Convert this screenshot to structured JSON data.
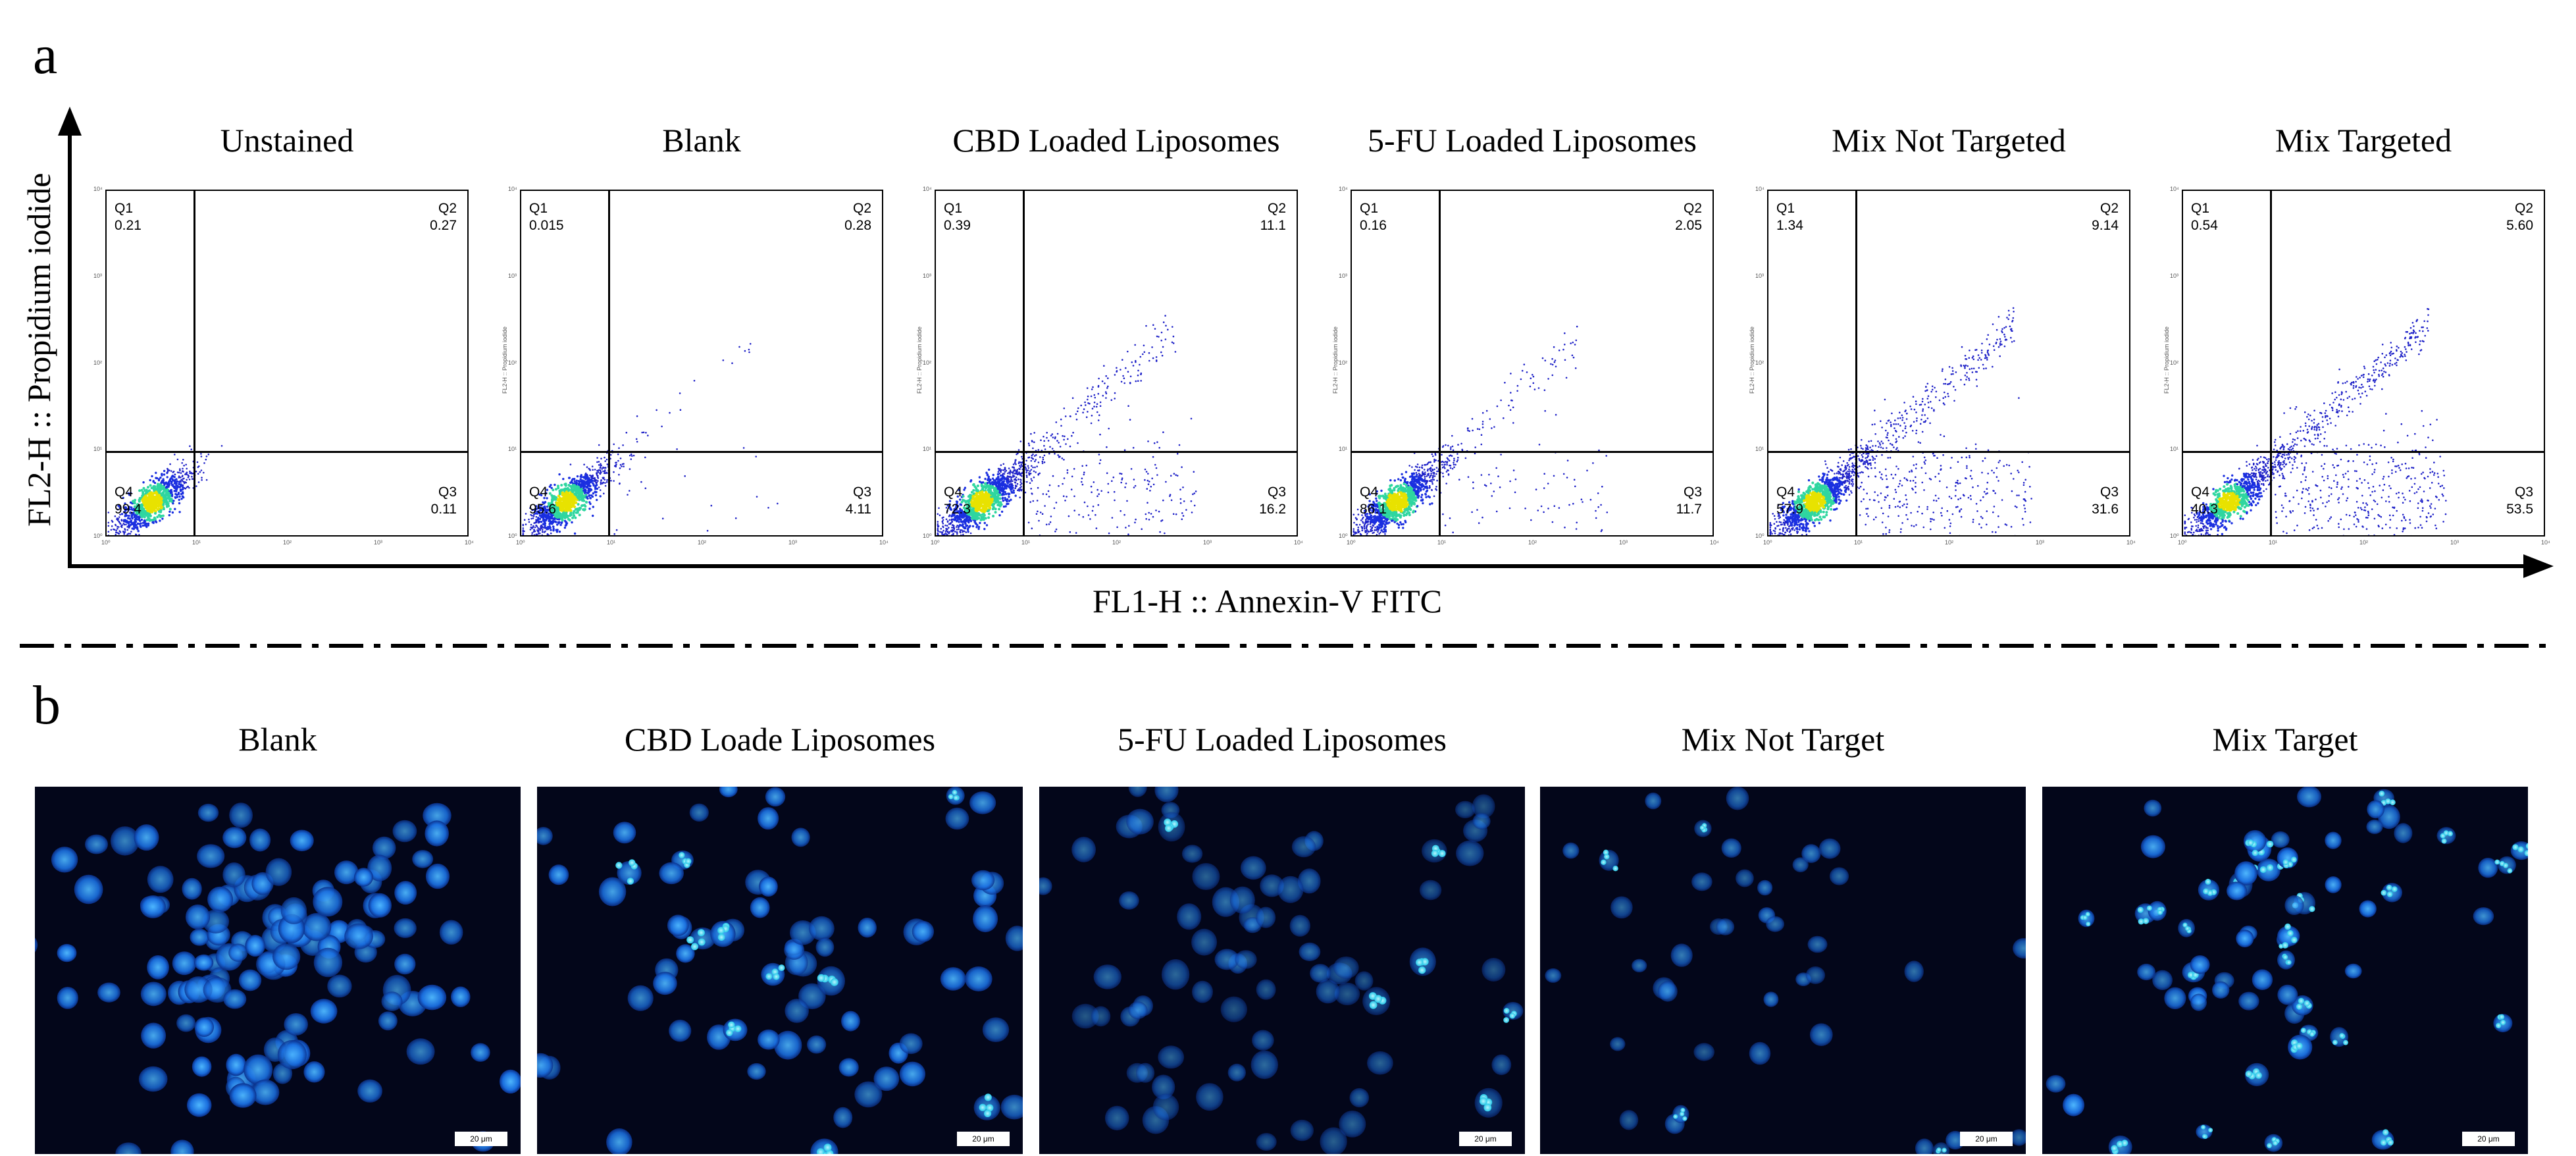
{
  "panel_a": {
    "letter": "a",
    "y_axis_label": "FL2-H :: Propidium iodide",
    "x_axis_label": "FL1-H :: Annexin-V FITC",
    "tiny_y_label": "FL2-H :: Propidium iodide",
    "tick_labels": [
      "10⁰",
      "10¹",
      "10²",
      "10³",
      "10⁴"
    ]
  },
  "panel_b": {
    "letter": "b",
    "scale_bar_label": "20 μm",
    "images": [
      {
        "title": "Blank",
        "icon": "micrograph-dense-nuclei"
      },
      {
        "title": "CBD Loade Liposomes",
        "icon": "micrograph-scattered-nuclei"
      },
      {
        "title": "5-FU Loaded Liposomes",
        "icon": "micrograph-dim-nuclei"
      },
      {
        "title": "Mix Not Target",
        "icon": "micrograph-sparse-nuclei"
      },
      {
        "title": "Mix Target",
        "icon": "micrograph-fragmented-nuclei"
      }
    ]
  },
  "chart_data": {
    "type": "scatter",
    "subtype": "flow-cytometry-quadrant-plot",
    "x_scale": "log",
    "y_scale": "log",
    "xlim": [
      1,
      10000
    ],
    "ylim": [
      1,
      10000
    ],
    "quadrant_names": [
      "Q1",
      "Q2",
      "Q3",
      "Q4"
    ],
    "plots": [
      {
        "title": "Unstained",
        "Q1": "0.21",
        "Q2": "0.27",
        "Q3": "0.11",
        "Q4": "99.4",
        "gate_x": 9,
        "gate_y": 10,
        "spread": 0.25,
        "tail": 0.0,
        "count": 900,
        "show_ylabel": false
      },
      {
        "title": "Blank",
        "Q1": "0.015",
        "Q2": "0.28",
        "Q3": "4.11",
        "Q4": "95.6",
        "gate_x": 9,
        "gate_y": 10,
        "spread": 0.45,
        "tail": 0.05,
        "count": 1100,
        "show_ylabel": true
      },
      {
        "title": "CBD Loaded Liposomes",
        "Q1": "0.39",
        "Q2": "11.1",
        "Q3": "16.2",
        "Q4": "72.3",
        "gate_x": 9,
        "gate_y": 10,
        "spread": 0.55,
        "tail": 0.25,
        "count": 1600,
        "show_ylabel": true
      },
      {
        "title": "5-FU Loaded Liposomes",
        "Q1": "0.16",
        "Q2": "2.05",
        "Q3": "11.7",
        "Q4": "86.1",
        "gate_x": 9,
        "gate_y": 10,
        "spread": 0.5,
        "tail": 0.15,
        "count": 1300,
        "show_ylabel": true
      },
      {
        "title": "Mix Not Targeted",
        "Q1": "1.34",
        "Q2": "9.14",
        "Q3": "31.6",
        "Q4": "57.9",
        "gate_x": 9,
        "gate_y": 10,
        "spread": 0.6,
        "tail": 0.35,
        "count": 1800,
        "show_ylabel": true
      },
      {
        "title": "Mix Targeted",
        "Q1": "0.54",
        "Q2": "5.60",
        "Q3": "53.5",
        "Q4": "40.3",
        "gate_x": 9,
        "gate_y": 10,
        "spread": 0.6,
        "tail": 0.5,
        "count": 1700,
        "show_ylabel": true
      }
    ],
    "colors": {
      "density_high": "#e8e200",
      "density_mid": "#2fd6a0",
      "density_low": "#1a2fe0",
      "sparse": "#1f22c8"
    }
  }
}
